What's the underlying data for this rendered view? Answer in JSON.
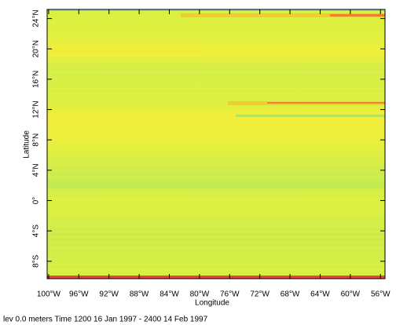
{
  "chart_data": {
    "type": "heatmap",
    "x_label": "Longitude",
    "y_label": "Latitude",
    "footer": "lev 0.0 meters Time 1200 16 Jan 1997 - 2400 14 Feb 1997",
    "xlim": [
      -100.2,
      -55.4
    ],
    "ylim": [
      -10.3,
      25.2
    ],
    "xticks": [
      {
        "value": -100,
        "label": "100°W"
      },
      {
        "value": -96,
        "label": "96°W"
      },
      {
        "value": -92,
        "label": "92°W"
      },
      {
        "value": -88,
        "label": "88°W"
      },
      {
        "value": -84,
        "label": "84°W"
      },
      {
        "value": -80,
        "label": "80°W"
      },
      {
        "value": -76,
        "label": "76°W"
      },
      {
        "value": -72,
        "label": "72°W"
      },
      {
        "value": -68,
        "label": "68°W"
      },
      {
        "value": -64,
        "label": "64°W"
      },
      {
        "value": -60,
        "label": "60°W"
      },
      {
        "value": -56,
        "label": "56°W"
      }
    ],
    "yticks": [
      {
        "value": 24,
        "label": "24°N"
      },
      {
        "value": 20,
        "label": "20°N"
      },
      {
        "value": 16,
        "label": "16°N"
      },
      {
        "value": 12,
        "label": "12°N"
      },
      {
        "value": 8,
        "label": "8°N"
      },
      {
        "value": 4,
        "label": "4°N"
      },
      {
        "value": 0,
        "label": "0°"
      },
      {
        "value": -4,
        "label": "4°S"
      },
      {
        "value": -8,
        "label": "8°S"
      }
    ]
  }
}
